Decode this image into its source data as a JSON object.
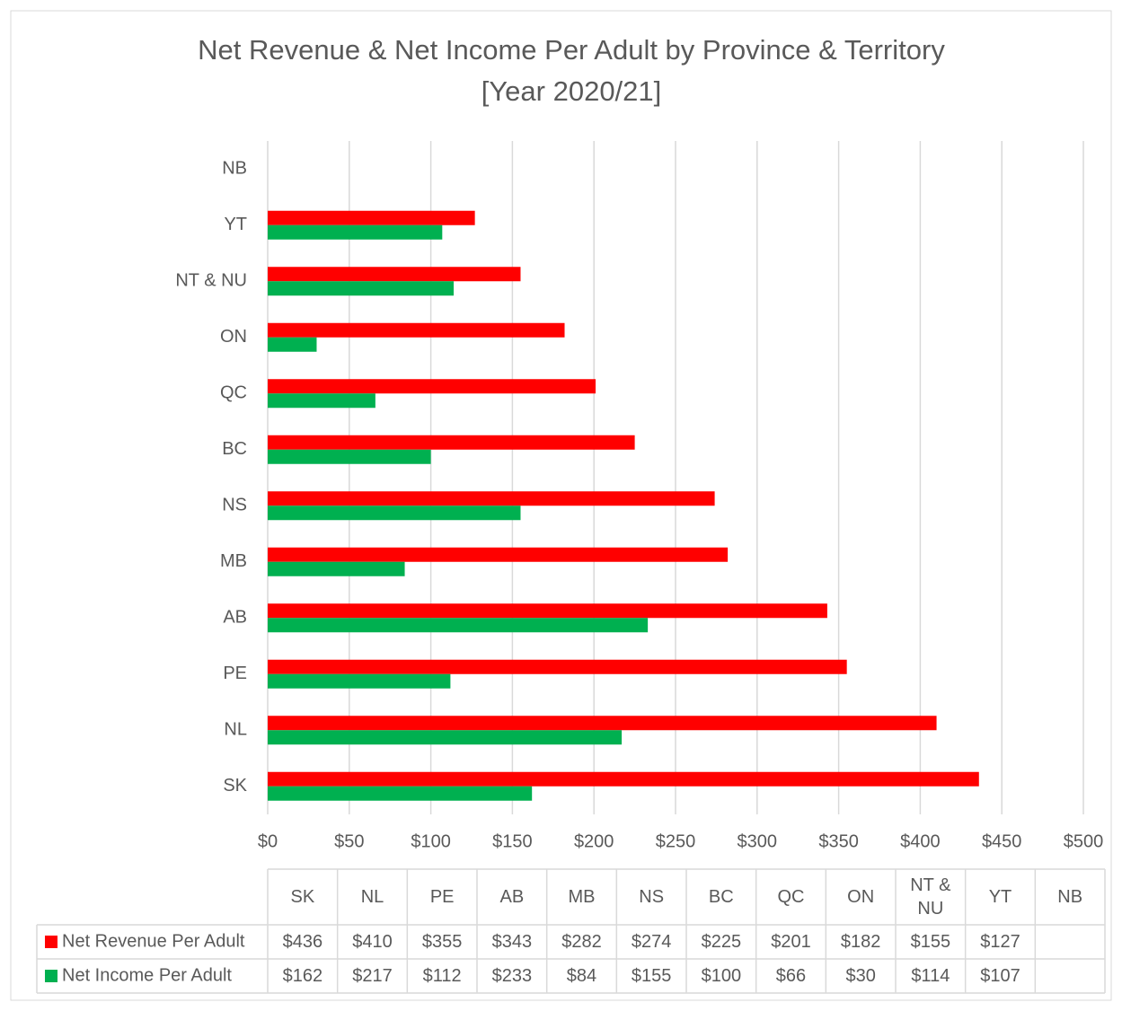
{
  "chart_data": {
    "type": "bar",
    "orientation": "horizontal",
    "title": "Net Revenue & Net Income Per Adult by Province & Territory",
    "subtitle": "[Year 2020/21]",
    "categories": [
      "SK",
      "NL",
      "PE",
      "AB",
      "MB",
      "NS",
      "BC",
      "QC",
      "ON",
      "NT & NU",
      "YT",
      "NB"
    ],
    "series": [
      {
        "name": "Net Revenue Per Adult",
        "color": "#ff0000",
        "values": [
          436,
          410,
          355,
          343,
          282,
          274,
          225,
          201,
          182,
          155,
          127,
          null
        ],
        "value_labels": [
          "$436",
          "$410",
          "$355",
          "$343",
          "$282",
          "$274",
          "$225",
          "$201",
          "$182",
          "$155",
          "$127",
          null
        ]
      },
      {
        "name": "Net Income Per Adult",
        "color": "#00b050",
        "values": [
          162,
          217,
          112,
          233,
          84,
          155,
          100,
          66,
          30,
          114,
          107,
          null
        ],
        "value_labels": [
          "$162",
          "$217",
          "$112",
          "$233",
          "$84",
          "$155",
          "$100",
          "$66",
          "$30",
          "$114",
          "$107",
          null
        ]
      }
    ],
    "xlim": [
      0,
      500
    ],
    "xticks": [
      {
        "value": 0,
        "label": "$0"
      },
      {
        "value": 50,
        "label": "$50"
      },
      {
        "value": 100,
        "label": "$100"
      },
      {
        "value": 150,
        "label": "$150"
      },
      {
        "value": 200,
        "label": "$200"
      },
      {
        "value": 250,
        "label": "$250"
      },
      {
        "value": 300,
        "label": "$300"
      },
      {
        "value": 350,
        "label": "$350"
      },
      {
        "value": 400,
        "label": "$400"
      },
      {
        "value": 450,
        "label": "$450"
      },
      {
        "value": 500,
        "label": "$500"
      }
    ],
    "grid": true,
    "data_table": true
  }
}
